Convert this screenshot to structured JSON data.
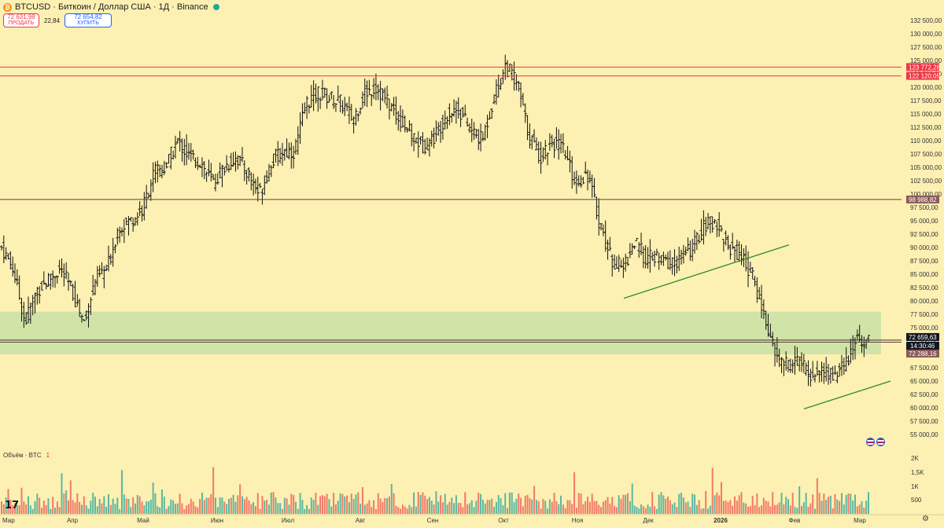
{
  "header": {
    "symbol": "BTCUSD · Биткоин / Доллар США · 1Д · Binance",
    "logo_icon": "bitcoin-logo-icon",
    "status_icon": "market-open-dot-icon",
    "sell_price": "72 631,98",
    "sell_label": "ПРОДАТЬ",
    "spread": "22,84",
    "buy_price": "72 654,82",
    "buy_label": "КУПИТЬ"
  },
  "volume_pane": {
    "title": "Объём · BTC",
    "value": "1"
  },
  "colors": {
    "background": "#fcf0b2",
    "up": "#26a69a",
    "down": "#ef5350",
    "hline_red": "#f23645",
    "hline_brown": "#6b3b3b",
    "trend": "#2e8b2e",
    "zone": "rgba(180,220,160,0.6)"
  },
  "chart_data": {
    "type": "candlestick-bars",
    "price_axis_labels": [
      "132 500,00",
      "130 000,00",
      "127 500,00",
      "125 000,00",
      "122 500,00",
      "120 000,00",
      "117 500,00",
      "115 000,00",
      "112 500,00",
      "110 000,00",
      "107 500,00",
      "105 000,00",
      "102 500,00",
      "100 000,00",
      "97 500,00",
      "95 000,00",
      "92 500,00",
      "90 000,00",
      "87 500,00",
      "85 000,00",
      "82 500,00",
      "80 000,00",
      "77 500,00",
      "75 000,00",
      "72 500,00",
      "70 000,00",
      "67 500,00",
      "65 000,00",
      "62 500,00",
      "60 000,00",
      "57 500,00",
      "55 000,00"
    ],
    "volume_axis_labels": [
      "2K",
      "1,5K",
      "1K",
      "500"
    ],
    "time_axis_labels": [
      "Мар",
      "Апр",
      "Май",
      "Июн",
      "Июл",
      "Авг",
      "Сен",
      "Окт",
      "Ноя",
      "Дек",
      "2026",
      "Фев",
      "Мар"
    ],
    "horizontal_levels": [
      {
        "price": 123772.28,
        "label": "123 772,28",
        "color": "red"
      },
      {
        "price": 122120.05,
        "label": "122 120,05",
        "color": "red"
      },
      {
        "price": 98988.82,
        "label": "98 988,82",
        "color": "brown"
      },
      {
        "price": 72659.63,
        "label": "72 659,63",
        "color": "black"
      },
      {
        "price": 72288.16,
        "label": "72 288,16",
        "color": "brown"
      }
    ],
    "countdown": "14:30:46",
    "zone": {
      "from": 70000,
      "to": 78000
    },
    "trendlines": [
      {
        "from": [
          "Ноя",
          80500
        ],
        "to": [
          "Дек",
          90500
        ]
      },
      {
        "from": [
          "Фев",
          59800
        ],
        "to": [
          "Мар",
          65000
        ]
      }
    ],
    "price_path": [
      [
        "Мар",
        90000
      ],
      [
        "Мар",
        86000
      ],
      [
        "Мар",
        76000
      ],
      [
        "Мар",
        82000
      ],
      [
        "Мар",
        84000
      ],
      [
        "Апр",
        86000
      ],
      [
        "Апр",
        82000
      ],
      [
        "Апр",
        76000
      ],
      [
        "Апр",
        84000
      ],
      [
        "Апр",
        86000
      ],
      [
        "Апр",
        94000
      ],
      [
        "Май",
        95000
      ],
      [
        "Май",
        97000
      ],
      [
        "Май",
        104000
      ],
      [
        "Май",
        105000
      ],
      [
        "Май",
        110000
      ],
      [
        "Июн",
        107000
      ],
      [
        "Июн",
        106000
      ],
      [
        "Июн",
        102000
      ],
      [
        "Июн",
        105000
      ],
      [
        "Июн",
        107000
      ],
      [
        "Июн",
        104000
      ],
      [
        "Июл",
        100000
      ],
      [
        "Июл",
        106000
      ],
      [
        "Июл",
        108000
      ],
      [
        "Июл",
        108000
      ],
      [
        "Июл",
        117000
      ],
      [
        "Июл",
        119000
      ],
      [
        "Авг",
        118000
      ],
      [
        "Авг",
        117000
      ],
      [
        "Авг",
        114000
      ],
      [
        "Авг",
        119000
      ],
      [
        "Авг",
        120000
      ],
      [
        "Авг",
        117000
      ],
      [
        "Авг",
        114000
      ],
      [
        "Сен",
        111000
      ],
      [
        "Сен",
        109000
      ],
      [
        "Сен",
        111000
      ],
      [
        "Сен",
        115000
      ],
      [
        "Сен",
        116000
      ],
      [
        "Сен",
        112000
      ],
      [
        "Окт",
        110000
      ],
      [
        "Окт",
        118000
      ],
      [
        "Окт",
        124000
      ],
      [
        "Окт",
        121000
      ],
      [
        "Окт",
        111000
      ],
      [
        "Окт",
        107000
      ],
      [
        "Ноя",
        110000
      ],
      [
        "Ноя",
        108000
      ],
      [
        "Ноя",
        102000
      ],
      [
        "Ноя",
        104000
      ],
      [
        "Ноя",
        95000
      ],
      [
        "Ноя",
        88000
      ],
      [
        "Дек",
        86000
      ],
      [
        "Дек",
        91000
      ],
      [
        "Дек",
        88000
      ],
      [
        "Дек",
        88000
      ],
      [
        "Дек",
        87000
      ],
      [
        "Дек",
        88000
      ],
      [
        "2026",
        90000
      ],
      [
        "2026",
        94000
      ],
      [
        "2026",
        95000
      ],
      [
        "2026",
        90000
      ],
      [
        "2026",
        89000
      ],
      [
        "Фев",
        85000
      ],
      [
        "Фев",
        78000
      ],
      [
        "Фев",
        70000
      ],
      [
        "Фев",
        68000
      ],
      [
        "Фев",
        69000
      ],
      [
        "Мар",
        66000
      ],
      [
        "Мар",
        67000
      ],
      [
        "Мар",
        66000
      ],
      [
        "Мар",
        68000
      ],
      [
        "Мар",
        73000
      ],
      [
        "Мар",
        72600
      ]
    ],
    "volume_peak": 2000
  }
}
